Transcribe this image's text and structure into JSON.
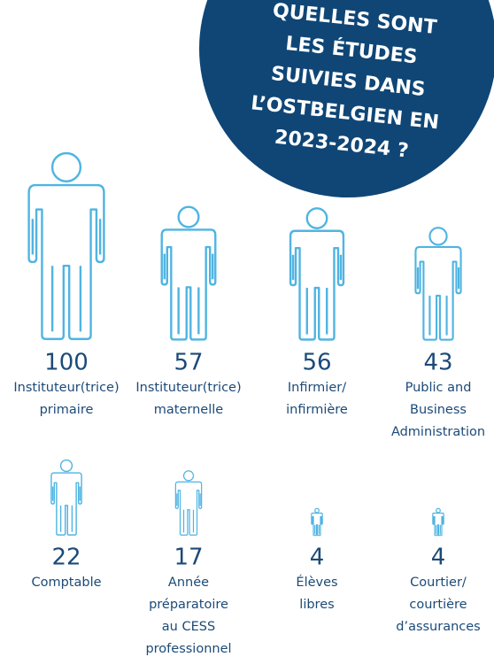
{
  "chart_data": {
    "type": "pictogram",
    "title": [
      "QUELLES SONT",
      "LES ÉTUDES",
      "SUIVIES DANS",
      "L’OSTBELGIEN EN",
      "2023-2024 ?"
    ],
    "categories": [
      [
        "Instituteur(trice)",
        "primaire"
      ],
      [
        "Instituteur(trice)",
        "maternelle"
      ],
      [
        "Infirmier/",
        "infirmière"
      ],
      [
        "Public and",
        "Business",
        "Administration"
      ],
      [
        "Comptable"
      ],
      [
        "Année",
        "préparatoire",
        "au CESS",
        "professionnel"
      ],
      [
        "Élèves",
        "libres"
      ],
      [
        "Courtier/",
        "courtière",
        "d’assurances"
      ]
    ],
    "values": [
      100,
      57,
      56,
      43,
      22,
      17,
      4,
      4
    ],
    "color": "#4fb4e2"
  }
}
